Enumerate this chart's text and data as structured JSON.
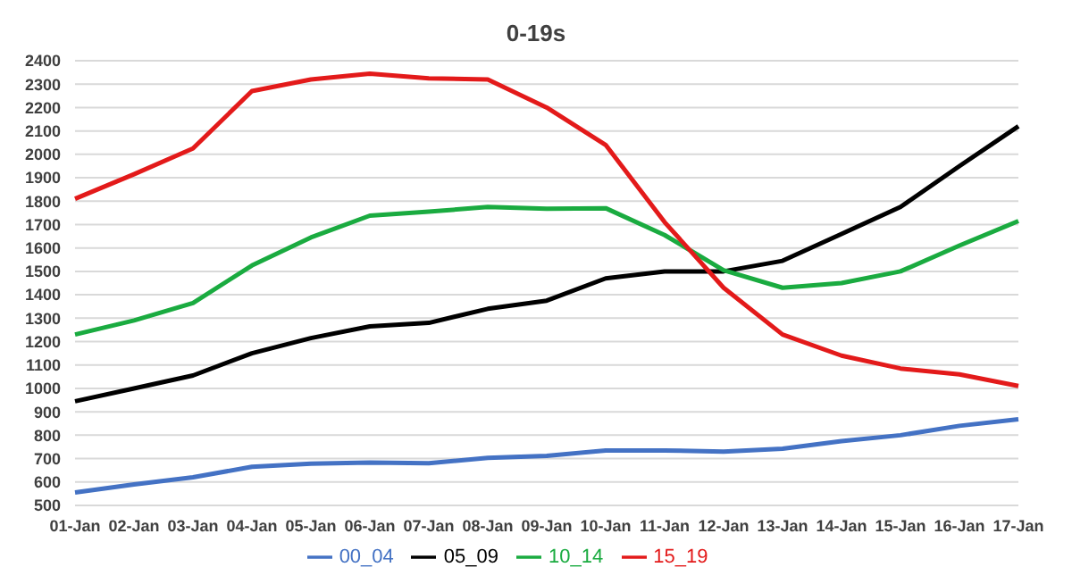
{
  "chart_data": {
    "type": "line",
    "title": "0-19s",
    "categories": [
      "01-Jan",
      "02-Jan",
      "03-Jan",
      "04-Jan",
      "05-Jan",
      "06-Jan",
      "07-Jan",
      "08-Jan",
      "09-Jan",
      "10-Jan",
      "11-Jan",
      "12-Jan",
      "13-Jan",
      "14-Jan",
      "15-Jan",
      "16-Jan",
      "17-Jan"
    ],
    "series": [
      {
        "name": "00_04",
        "color": "#4472c4",
        "values": [
          555,
          590,
          620,
          665,
          678,
          683,
          680,
          703,
          712,
          735,
          735,
          730,
          742,
          775,
          800,
          840,
          868
        ]
      },
      {
        "name": "05_09",
        "color": "#000000",
        "values": [
          945,
          1000,
          1055,
          1150,
          1215,
          1265,
          1280,
          1340,
          1375,
          1470,
          1500,
          1500,
          1545,
          1660,
          1775,
          1950,
          2120
        ]
      },
      {
        "name": "10_14",
        "color": "#1aab40",
        "values": [
          1230,
          1290,
          1365,
          1525,
          1645,
          1738,
          1755,
          1775,
          1768,
          1770,
          1655,
          1505,
          1430,
          1450,
          1500,
          1610,
          1715
        ]
      },
      {
        "name": "15_19",
        "color": "#e31a1a",
        "values": [
          1810,
          1915,
          2025,
          2270,
          2320,
          2345,
          2325,
          2320,
          2200,
          2040,
          1710,
          1430,
          1230,
          1140,
          1085,
          1060,
          1010
        ]
      }
    ],
    "ylim": [
      500,
      2400
    ],
    "yticks": [
      500,
      600,
      700,
      800,
      900,
      1000,
      1100,
      1200,
      1300,
      1400,
      1500,
      1600,
      1700,
      1800,
      1900,
      2000,
      2100,
      2200,
      2300,
      2400
    ],
    "grid": "y",
    "legend": "bottom",
    "marker": "none",
    "line_style": "solid"
  }
}
